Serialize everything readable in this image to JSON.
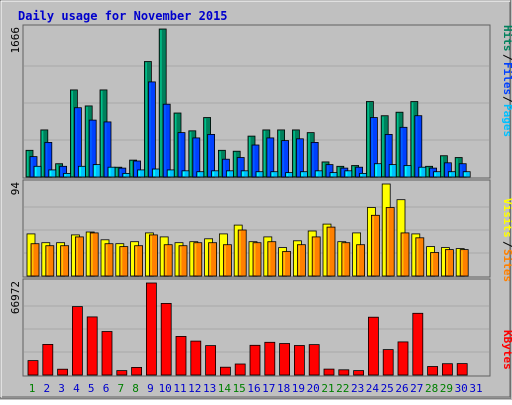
{
  "chart_data": {
    "type": "bar",
    "title": "Daily usage for November 2015",
    "colors": {
      "background": "#C0C0C0",
      "frame": "#808080",
      "title": "#0000CC",
      "hits": "#00805C",
      "files": "#0040FF",
      "pages": "#00C0FF",
      "visits": "#FFFF00",
      "sites": "#FF8000",
      "kbytes": "#FF0000",
      "weekday": "#0000CC",
      "weekend": "#008000"
    },
    "categories": [
      "1",
      "2",
      "3",
      "4",
      "5",
      "6",
      "7",
      "8",
      "9",
      "10",
      "11",
      "12",
      "13",
      "14",
      "15",
      "16",
      "17",
      "18",
      "19",
      "20",
      "21",
      "22",
      "23",
      "24",
      "25",
      "26",
      "27",
      "28",
      "29",
      "30",
      "31"
    ],
    "weekend_days": [
      "1",
      "7",
      "8",
      "14",
      "15",
      "21",
      "22",
      "28",
      "29"
    ],
    "panels": [
      {
        "id": "top",
        "max_label": "1666",
        "ymax": 1666,
        "legend": [
          "Pages",
          "Files",
          "Hits"
        ],
        "series": [
          {
            "name": "Hits",
            "color_key": "hits",
            "values": [
              300,
              530,
              150,
              980,
              800,
              980,
              110,
              190,
              1300,
              1666,
              720,
              520,
              670,
              300,
              290,
              460,
              530,
              530,
              530,
              500,
              170,
              120,
              130,
              850,
              690,
              730,
              850,
              120,
              240,
              220,
              0
            ]
          },
          {
            "name": "Files",
            "color_key": "files",
            "values": [
              230,
              390,
              120,
              780,
              640,
              620,
              100,
              180,
              1070,
              820,
              500,
              440,
              480,
              200,
              220,
              360,
              440,
              410,
              430,
              390,
              140,
              100,
              110,
              670,
              480,
              560,
              690,
              100,
              160,
              150,
              0
            ]
          },
          {
            "name": "Pages",
            "color_key": "pages",
            "values": [
              120,
              80,
              40,
              120,
              140,
              110,
              40,
              80,
              90,
              80,
              70,
              60,
              70,
              70,
              70,
              60,
              60,
              50,
              60,
              70,
              50,
              70,
              40,
              150,
              140,
              130,
              110,
              60,
              60,
              60,
              0
            ]
          }
        ]
      },
      {
        "id": "middle",
        "max_label": "94",
        "ymax": 94,
        "legend": [
          "Sites",
          "Visits"
        ],
        "series": [
          {
            "name": "Visits",
            "color_key": "visits",
            "values": [
              43,
              34,
              34,
              42,
              45,
              37,
              33,
              35,
              44,
              40,
              34,
              35,
              38,
              43,
              52,
              35,
              40,
              29,
              36,
              46,
              53,
              35,
              44,
              70,
              94,
              78,
              43,
              30,
              29,
              28,
              0
            ]
          },
          {
            "name": "Sites",
            "color_key": "sites",
            "values": [
              33,
              31,
              31,
              40,
              44,
              33,
              30,
              31,
              42,
              32,
              31,
              34,
              34,
              32,
              47,
              34,
              35,
              25,
              32,
              40,
              50,
              34,
              32,
              62,
              70,
              44,
              39,
              24,
              27,
              27,
              0
            ]
          }
        ]
      },
      {
        "id": "bottom",
        "max_label": "66972",
        "ymax": 66972,
        "legend": [
          "KBytes"
        ],
        "series": [
          {
            "name": "KBytes",
            "color_key": "kbytes",
            "values": [
              10500,
              22300,
              4200,
              49800,
              42300,
              31700,
              3200,
              5500,
              66972,
              52100,
              28100,
              24700,
              21400,
              5700,
              8000,
              21600,
              23800,
              22900,
              21500,
              22100,
              4300,
              3800,
              3200,
              42100,
              18500,
              24100,
              44900,
              6200,
              8200,
              8300,
              0
            ]
          }
        ]
      }
    ]
  }
}
